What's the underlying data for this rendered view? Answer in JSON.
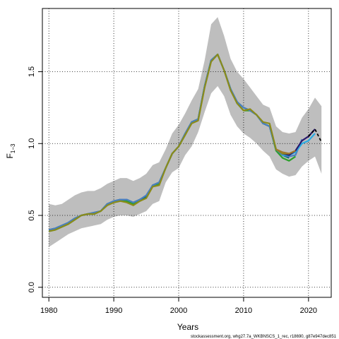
{
  "chart_data": {
    "type": "line",
    "xlabel": "Years",
    "ylabel_main": "F",
    "ylabel_sub": "1−3",
    "xlim": [
      1979,
      2023.5
    ],
    "ylim": [
      -0.07,
      1.94
    ],
    "xticks": [
      1980,
      1990,
      2000,
      2010,
      2020
    ],
    "yticks": [
      0.0,
      0.5,
      1.0,
      1.5
    ],
    "ytick_labels": [
      "0.0",
      "0.5",
      "1.0",
      "1.5"
    ],
    "grid": true,
    "band": {
      "x": [
        1980,
        1981,
        1982,
        1983,
        1984,
        1985,
        1986,
        1987,
        1988,
        1989,
        1990,
        1991,
        1992,
        1993,
        1994,
        1995,
        1996,
        1997,
        1998,
        1999,
        2000,
        2001,
        2002,
        2003,
        2004,
        2005,
        2006,
        2007,
        2008,
        2009,
        2010,
        2011,
        2012,
        2013,
        2014,
        2015,
        2016,
        2017,
        2018,
        2019,
        2020,
        2021,
        2022
      ],
      "upper": [
        0.58,
        0.57,
        0.58,
        0.61,
        0.64,
        0.66,
        0.67,
        0.67,
        0.69,
        0.72,
        0.74,
        0.76,
        0.76,
        0.74,
        0.76,
        0.79,
        0.85,
        0.87,
        0.96,
        1.07,
        1.13,
        1.21,
        1.3,
        1.38,
        1.58,
        1.83,
        1.88,
        1.75,
        1.59,
        1.5,
        1.45,
        1.39,
        1.33,
        1.27,
        1.25,
        1.12,
        1.08,
        1.07,
        1.08,
        1.18,
        1.24,
        1.32,
        1.26
      ],
      "lower": [
        0.28,
        0.31,
        0.34,
        0.37,
        0.39,
        0.41,
        0.42,
        0.43,
        0.44,
        0.47,
        0.49,
        0.5,
        0.5,
        0.49,
        0.51,
        0.53,
        0.58,
        0.6,
        0.73,
        0.8,
        0.83,
        0.92,
        0.98,
        1.08,
        1.22,
        1.35,
        1.4,
        1.33,
        1.2,
        1.12,
        1.07,
        1.04,
        1.0,
        0.95,
        0.91,
        0.82,
        0.79,
        0.77,
        0.78,
        0.84,
        0.88,
        0.91,
        0.79
      ]
    },
    "series": [
      {
        "color": "#2ca02c",
        "x": [
          1980,
          1981,
          1982,
          1983,
          1984,
          1985,
          1986,
          1987,
          1988,
          1989,
          1990,
          1991,
          1992,
          1993,
          1994,
          1995,
          1996,
          1997,
          1998,
          1999,
          2000,
          2001,
          2002,
          2003,
          2004,
          2005,
          2006,
          2007,
          2008,
          2009,
          2010,
          2011,
          2012,
          2013,
          2014,
          2015,
          2016,
          2017,
          2018
        ],
        "y": [
          0.39,
          0.4,
          0.42,
          0.44,
          0.47,
          0.5,
          0.51,
          0.51,
          0.53,
          0.58,
          0.59,
          0.6,
          0.6,
          0.58,
          0.6,
          0.63,
          0.71,
          0.72,
          0.83,
          0.93,
          0.98,
          1.06,
          1.15,
          1.17,
          1.4,
          1.58,
          1.62,
          1.51,
          1.38,
          1.28,
          1.23,
          1.23,
          1.2,
          1.14,
          1.12,
          0.95,
          0.9,
          0.88,
          0.91
        ]
      },
      {
        "color": "#0a6e6e",
        "x": [
          1980,
          1981,
          1982,
          1983,
          1984,
          1985,
          1986,
          1987,
          1988,
          1989,
          1990,
          1991,
          1992,
          1993,
          1994,
          1995,
          1996,
          1997,
          1998,
          1999,
          2000,
          2001,
          2002,
          2003,
          2004,
          2005,
          2006,
          2007,
          2008,
          2009,
          2010,
          2011,
          2012,
          2013,
          2014,
          2015,
          2016,
          2017
        ],
        "y": [
          0.4,
          0.41,
          0.43,
          0.45,
          0.48,
          0.5,
          0.51,
          0.52,
          0.53,
          0.58,
          0.6,
          0.61,
          0.61,
          0.59,
          0.61,
          0.63,
          0.71,
          0.73,
          0.83,
          0.93,
          0.98,
          1.07,
          1.15,
          1.17,
          1.4,
          1.58,
          1.62,
          1.51,
          1.38,
          1.29,
          1.25,
          1.23,
          1.2,
          1.14,
          1.12,
          0.96,
          0.92,
          0.9
        ]
      },
      {
        "color": "#4a7fc0",
        "x": [
          1980,
          1981,
          1982,
          1983,
          1984,
          1985,
          1986,
          1987,
          1988,
          1989,
          1990,
          1991,
          1992,
          1993,
          1994,
          1995,
          1996,
          1997,
          1998,
          1999,
          2000,
          2001,
          2002,
          2003,
          2004,
          2005,
          2006,
          2007,
          2008,
          2009,
          2010,
          2011,
          2012,
          2013,
          2014,
          2015,
          2016,
          2017,
          2018,
          2019
        ],
        "y": [
          0.4,
          0.41,
          0.43,
          0.45,
          0.48,
          0.5,
          0.51,
          0.52,
          0.53,
          0.58,
          0.6,
          0.61,
          0.61,
          0.59,
          0.61,
          0.64,
          0.71,
          0.73,
          0.83,
          0.93,
          0.98,
          1.07,
          1.15,
          1.17,
          1.4,
          1.58,
          1.62,
          1.51,
          1.38,
          1.29,
          1.25,
          1.23,
          1.2,
          1.14,
          1.12,
          0.96,
          0.92,
          0.91,
          0.92,
          1.03
        ]
      },
      {
        "color": "#29abe2",
        "x": [
          2016,
          2017,
          2018,
          2019,
          2020,
          2021
        ],
        "y": [
          0.92,
          0.92,
          0.94,
          1.0,
          1.02,
          1.07
        ]
      },
      {
        "color": "#2b1a6e",
        "x": [
          2016,
          2017,
          2018,
          2019,
          2020,
          2021
        ],
        "y": [
          0.93,
          0.92,
          0.95,
          1.02,
          1.05,
          1.1
        ]
      },
      {
        "color": "#8b8b1a",
        "x": [
          1980,
          1981,
          1982,
          1983,
          1984,
          1985,
          1986,
          1987,
          1988,
          1989,
          1990,
          1991,
          1992,
          1993,
          1994,
          1995,
          1996,
          1997,
          1998,
          1999,
          2000,
          2001,
          2002,
          2003,
          2004,
          2005,
          2006,
          2007,
          2008,
          2009,
          2010,
          2011,
          2012,
          2013,
          2014,
          2015,
          2016,
          2017
        ],
        "y": [
          0.39,
          0.4,
          0.42,
          0.44,
          0.47,
          0.5,
          0.51,
          0.51,
          0.53,
          0.57,
          0.59,
          0.6,
          0.59,
          0.57,
          0.6,
          0.62,
          0.7,
          0.71,
          0.83,
          0.93,
          0.98,
          1.06,
          1.14,
          1.16,
          1.39,
          1.57,
          1.62,
          1.51,
          1.37,
          1.28,
          1.23,
          1.24,
          1.2,
          1.15,
          1.14,
          0.96,
          0.93,
          0.93
        ]
      },
      {
        "color": "#a0782c",
        "x": [
          2015,
          2016,
          2017,
          2018
        ],
        "y": [
          0.96,
          0.94,
          0.93,
          0.95
        ]
      },
      {
        "color": "#000000",
        "dashed": true,
        "x": [
          2020,
          2021,
          2022
        ],
        "y": [
          1.05,
          1.1,
          1.01
        ]
      }
    ]
  },
  "footer": "stockassessment.org, whg27.7a_WKBNSCS_1_rec, r18690, g87e947dec851"
}
